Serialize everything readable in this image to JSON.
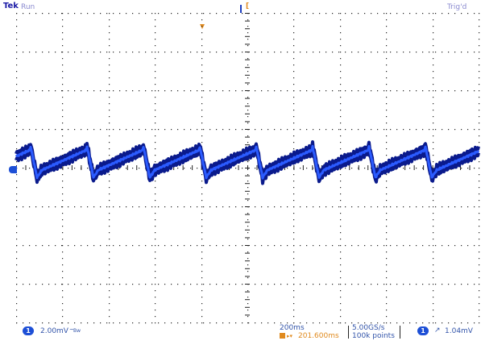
{
  "header": {
    "brand": "Tek",
    "run_state": "Run",
    "trigger_state": "Trig'd",
    "trigger_position_marker": "T"
  },
  "channel1": {
    "marker": "1",
    "scale": "2.00mV",
    "coupling": "AC",
    "bandwidth": "Bw",
    "color": "#1d3fbf"
  },
  "timebase": {
    "scale": "200ms",
    "delay": "201.600ms",
    "sample_rate": "5.00GS/s",
    "record_length": "100k points"
  },
  "trigger": {
    "source": "1",
    "slope": "rising",
    "level": "1.04mV"
  },
  "colors": {
    "graticule": "#222222",
    "trace_dark": "#0a1a8c",
    "trace_light": "#2b5bff",
    "accent_orange": "#e08a1e",
    "text_blue": "#3355aa"
  }
}
